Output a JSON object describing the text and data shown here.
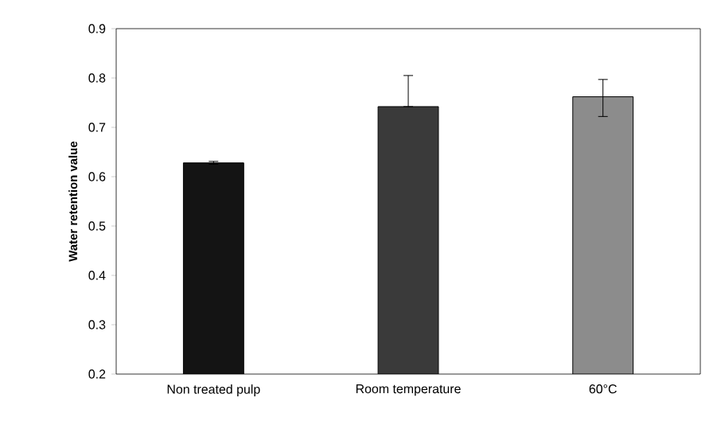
{
  "chart_data": {
    "type": "bar",
    "ylabel": "Water retention value",
    "categories": [
      "Non treated pulp",
      "Room temperature",
      "60°C"
    ],
    "values": [
      0.628,
      0.742,
      0.762
    ],
    "colors": [
      "#141414",
      "#3a3a3a",
      "#8c8c8c"
    ],
    "errors": [
      [
        0.625,
        0.631
      ],
      [
        0.742,
        0.805
      ],
      [
        0.722,
        0.797
      ]
    ],
    "ylim": [
      0.2,
      0.9
    ],
    "yticks": [
      0.2,
      0.3,
      0.4,
      0.5,
      0.6,
      0.7,
      0.8,
      0.9
    ],
    "grid": false
  }
}
